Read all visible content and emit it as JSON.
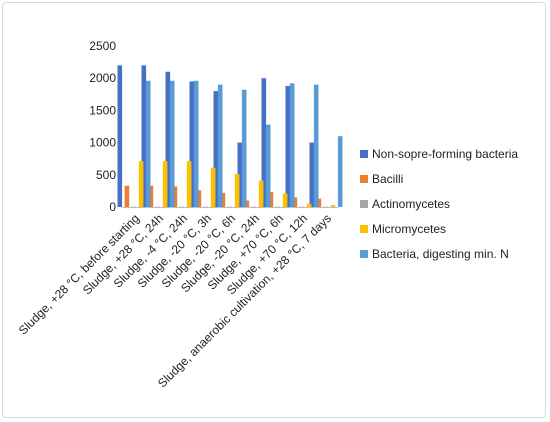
{
  "chart_data": {
    "type": "bar",
    "title": "",
    "xlabel": "",
    "ylabel": "",
    "ylim": [
      0,
      2500
    ],
    "yticks": [
      0,
      500,
      1000,
      1500,
      2000,
      2500
    ],
    "grid": false,
    "legend_position": "right",
    "categories": [
      "Sludge, +28 °C, before starting",
      "Sludge, +28 °C, 24h",
      "Sludge, -4 °C, 24h",
      "Sludge, -20 °C, 3h",
      "Sludge, -20 °C, 6h",
      "Sludge, -20 °C, 24h",
      "Sludge, +70 °C, 6h",
      "Sludge, +70 °C, 12h",
      "Sludge, anaerobic cultivation, +28 °C, 7 days"
    ],
    "series": [
      {
        "name": "Non-sopre-forming bacteria",
        "color": "#4472c4",
        "values": [
          2200,
          2200,
          2100,
          1950,
          1800,
          1000,
          2000,
          1880,
          1000
        ]
      },
      {
        "name": "Bacilli",
        "color": "#ed7d31",
        "values": [
          330,
          330,
          320,
          260,
          220,
          100,
          230,
          150,
          130
        ]
      },
      {
        "name": "Actinomycetes",
        "color": "#a5a5a5",
        "values": [
          5,
          5,
          5,
          5,
          5,
          5,
          5,
          5,
          5
        ]
      },
      {
        "name": "Micromycetes",
        "color": "#ffc000",
        "values": [
          710,
          710,
          710,
          610,
          510,
          410,
          210,
          50,
          30
        ]
      },
      {
        "name": "Bacteria, digesting min. N",
        "color": "#5b9bd5",
        "values": [
          1960,
          1960,
          1960,
          1900,
          1820,
          1280,
          1920,
          1900,
          1100
        ]
      }
    ]
  }
}
